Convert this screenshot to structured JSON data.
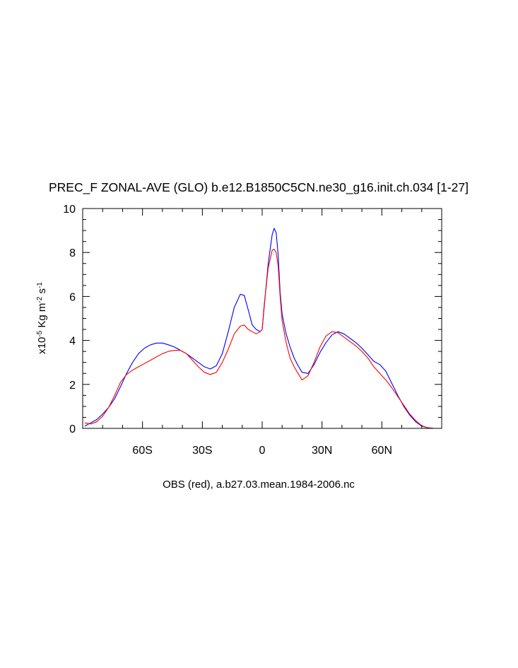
{
  "chart_data": {
    "type": "line",
    "title": "PREC_F ZONAL-AVE (GLO) b.e12.B1850C5CN.ne30_g16.init.ch.034 [1-27]",
    "xlabel": "OBS (red), a.b27.03.mean.1984-2006.nc",
    "ylabel_parts": [
      "x10",
      "-5",
      " Kg m",
      "-2",
      " s",
      "-1"
    ],
    "xlim": [
      -90,
      90
    ],
    "ylim": [
      0,
      10
    ],
    "x_ticks": [
      {
        "value": -60,
        "label": "60S"
      },
      {
        "value": -30,
        "label": "30S"
      },
      {
        "value": 0,
        "label": "0"
      },
      {
        "value": 30,
        "label": "30N"
      },
      {
        "value": 60,
        "label": "60N"
      }
    ],
    "y_ticks": [
      {
        "value": 0,
        "label": "0"
      },
      {
        "value": 2,
        "label": "2"
      },
      {
        "value": 4,
        "label": "4"
      },
      {
        "value": 6,
        "label": "6"
      },
      {
        "value": 8,
        "label": "8"
      },
      {
        "value": 10,
        "label": "10"
      }
    ],
    "series": [
      {
        "color": "#0000ff",
        "x": [
          -89,
          -86,
          -83,
          -80,
          -77,
          -74,
          -71,
          -68,
          -65,
          -62,
          -59,
          -56,
          -53,
          -50,
          -47,
          -44,
          -41,
          -38,
          -35,
          -32,
          -29,
          -26,
          -23,
          -20,
          -17,
          -14,
          -11,
          -9,
          -7,
          -5,
          -3,
          -1,
          0,
          1,
          3,
          5,
          6,
          7,
          8,
          9,
          10,
          12,
          14,
          16,
          18,
          20,
          23,
          26,
          29,
          32,
          35,
          38,
          41,
          44,
          47,
          50,
          53,
          56,
          59,
          62,
          65,
          68,
          71,
          74,
          77,
          80,
          83,
          86,
          89
        ],
        "y": [
          0.1,
          0.25,
          0.4,
          0.65,
          0.95,
          1.35,
          1.9,
          2.5,
          3.0,
          3.4,
          3.65,
          3.8,
          3.88,
          3.88,
          3.8,
          3.7,
          3.55,
          3.4,
          3.2,
          3.0,
          2.8,
          2.7,
          2.85,
          3.4,
          4.4,
          5.5,
          6.1,
          6.05,
          5.4,
          4.7,
          4.5,
          4.4,
          4.5,
          5.5,
          7.5,
          8.8,
          9.1,
          8.9,
          7.9,
          6.2,
          5.2,
          4.3,
          3.7,
          3.2,
          2.85,
          2.55,
          2.5,
          2.9,
          3.45,
          3.9,
          4.25,
          4.4,
          4.3,
          4.1,
          3.9,
          3.65,
          3.35,
          3.05,
          2.9,
          2.6,
          2.05,
          1.5,
          1.0,
          0.6,
          0.3,
          0.1,
          0.03,
          0.0,
          0.0
        ]
      },
      {
        "color": "#ff0000",
        "x": [
          -89,
          -86,
          -83,
          -80,
          -77,
          -74,
          -71,
          -68,
          -65,
          -62,
          -59,
          -56,
          -53,
          -50,
          -47,
          -44,
          -41,
          -38,
          -35,
          -32,
          -29,
          -26,
          -23,
          -20,
          -17,
          -14,
          -11,
          -9,
          -7,
          -5,
          -3,
          -1,
          0,
          1,
          3,
          5,
          6,
          7,
          8,
          9,
          10,
          12,
          14,
          16,
          18,
          20,
          23,
          26,
          29,
          32,
          35,
          38,
          41,
          44,
          47,
          50,
          53,
          56,
          59,
          62,
          65,
          68,
          71,
          74,
          77,
          80,
          83,
          86,
          89
        ],
        "y": [
          0.25,
          0.2,
          0.3,
          0.55,
          0.95,
          1.5,
          2.1,
          2.45,
          2.65,
          2.8,
          2.95,
          3.1,
          3.25,
          3.4,
          3.5,
          3.55,
          3.55,
          3.4,
          3.1,
          2.8,
          2.55,
          2.45,
          2.55,
          3.0,
          3.6,
          4.3,
          4.65,
          4.7,
          4.5,
          4.4,
          4.3,
          4.4,
          4.5,
          5.6,
          7.3,
          8.1,
          8.15,
          8.0,
          7.4,
          6.0,
          4.9,
          3.9,
          3.2,
          2.8,
          2.5,
          2.2,
          2.4,
          3.0,
          3.7,
          4.2,
          4.4,
          4.35,
          4.15,
          3.95,
          3.75,
          3.5,
          3.2,
          2.8,
          2.5,
          2.2,
          1.85,
          1.45,
          1.05,
          0.65,
          0.35,
          0.12,
          0.03,
          0.0,
          0.0
        ]
      }
    ]
  }
}
